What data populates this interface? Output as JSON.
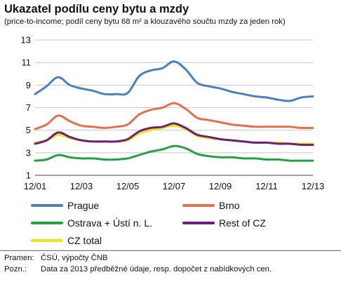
{
  "header": {
    "title": "Ukazatel podílu ceny bytu a mzdy",
    "subtitle": "(price-to-income; podíl ceny bytu 68 m² a klouzavého součtu mzdy za jeden rok)"
  },
  "footer": {
    "source_key": "Pramen:",
    "source_text": "ČSÚ, výpočty ČNB",
    "note_key": "Pozn.:",
    "note_text": "Data za 2013 předběžné údaje, resp. dopočet z nabídkových cen."
  },
  "chart_data": {
    "type": "line",
    "x": [
      "12/01",
      "06/02",
      "12/02",
      "06/03",
      "12/03",
      "06/04",
      "12/04",
      "06/05",
      "12/05",
      "06/06",
      "12/06",
      "06/07",
      "12/07",
      "06/08",
      "12/08",
      "06/09",
      "12/09",
      "06/10",
      "12/10",
      "06/11",
      "12/11",
      "06/12",
      "12/12",
      "06/13",
      "12/13"
    ],
    "x_ticks": [
      "12/01",
      "12/03",
      "12/05",
      "12/07",
      "12/09",
      "12/11",
      "12/13"
    ],
    "y_ticks": [
      1,
      3,
      5,
      7,
      9,
      11,
      13
    ],
    "ylim": [
      1,
      13
    ],
    "grid": "horizontal",
    "legend_position": "bottom",
    "series": [
      {
        "name": "Prague",
        "color": "#4a7fc0",
        "values": [
          8.2,
          8.9,
          9.7,
          9.0,
          8.7,
          8.5,
          8.2,
          8.2,
          8.3,
          9.8,
          10.3,
          10.5,
          11.1,
          10.4,
          9.2,
          8.9,
          8.7,
          8.4,
          8.2,
          8.0,
          7.9,
          7.7,
          7.6,
          7.9,
          8.0
        ]
      },
      {
        "name": "Brno",
        "color": "#e2704a",
        "values": [
          5.1,
          5.5,
          6.3,
          5.8,
          5.4,
          5.3,
          5.2,
          5.3,
          5.5,
          6.4,
          6.8,
          7.0,
          7.4,
          6.9,
          6.1,
          5.9,
          5.7,
          5.5,
          5.4,
          5.3,
          5.3,
          5.3,
          5.3,
          5.2,
          5.2
        ]
      },
      {
        "name": "Ostrava + Ústí n. L.",
        "color": "#24a040",
        "values": [
          2.3,
          2.4,
          2.8,
          2.6,
          2.5,
          2.5,
          2.4,
          2.4,
          2.5,
          2.8,
          3.1,
          3.3,
          3.6,
          3.4,
          2.9,
          2.7,
          2.6,
          2.6,
          2.5,
          2.5,
          2.4,
          2.4,
          2.3,
          2.3,
          2.3
        ]
      },
      {
        "name": "Rest of CZ",
        "color": "#6a1f7a",
        "values": [
          3.8,
          4.1,
          4.8,
          4.4,
          4.1,
          4.0,
          4.0,
          4.0,
          4.2,
          4.9,
          5.2,
          5.3,
          5.6,
          5.2,
          4.6,
          4.4,
          4.2,
          4.1,
          4.0,
          3.9,
          3.9,
          3.8,
          3.8,
          3.7,
          3.7
        ]
      },
      {
        "name": "CZ total",
        "color": "#f3e015",
        "values": [
          3.9,
          4.1,
          4.6,
          4.3,
          4.1,
          4.0,
          4.0,
          4.0,
          4.1,
          4.7,
          5.0,
          5.2,
          5.4,
          5.1,
          4.5,
          4.3,
          4.2,
          4.1,
          4.0,
          3.9,
          3.9,
          3.9,
          3.8,
          3.8,
          3.8
        ]
      }
    ]
  }
}
